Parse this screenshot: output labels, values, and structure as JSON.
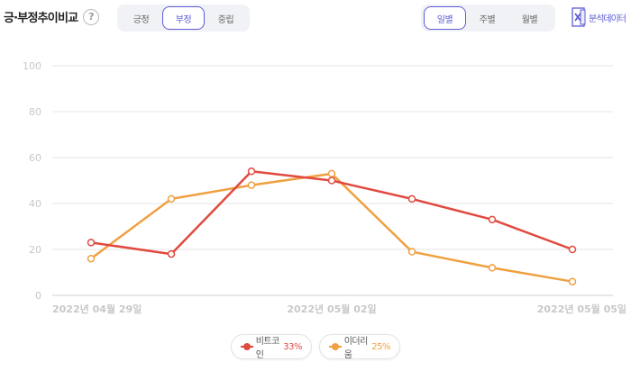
{
  "header": {
    "title": "긍·부정추이비교",
    "help_icon": "?",
    "sentiment_tabs": [
      {
        "label": "긍정",
        "active": false
      },
      {
        "label": "부정",
        "active": true
      },
      {
        "label": "중립",
        "active": false
      }
    ],
    "period_tabs": [
      {
        "label": "일별",
        "active": true
      },
      {
        "label": "주별",
        "active": false
      },
      {
        "label": "월별",
        "active": false
      }
    ],
    "excel_label": "분석데이터",
    "excel_icon": "excel-icon"
  },
  "colors": {
    "accent": "#5d5cd6",
    "bitcoin": "#e04a3f",
    "ethereum": "#f0a040",
    "grid": "#e6e6e6",
    "axis_text": "#c8c8c8"
  },
  "chart_data": {
    "type": "line",
    "x": [
      "2022-04-29",
      "2022-04-30",
      "2022-05-01",
      "2022-05-02",
      "2022-05-03",
      "2022-05-04",
      "2022-05-05"
    ],
    "x_tick_labels": [
      {
        "index": 0,
        "label": "2022년 04월 29일"
      },
      {
        "index": 3,
        "label": "2022년 05월 02일"
      },
      {
        "index": 6,
        "label": "2022년 05월 05일"
      }
    ],
    "y_ticks": [
      0,
      20,
      40,
      60,
      80,
      100
    ],
    "ylim": [
      0,
      100
    ],
    "grid": true,
    "legend_position": "bottom-center",
    "series": [
      {
        "name": "비트코인",
        "share": "33%",
        "color": "#e04a3f",
        "values": [
          23,
          18,
          54,
          50,
          42,
          33,
          20
        ]
      },
      {
        "name": "이더리움",
        "share": "25%",
        "color": "#f0a040",
        "values": [
          16,
          42,
          48,
          53,
          19,
          12,
          6
        ]
      }
    ]
  }
}
